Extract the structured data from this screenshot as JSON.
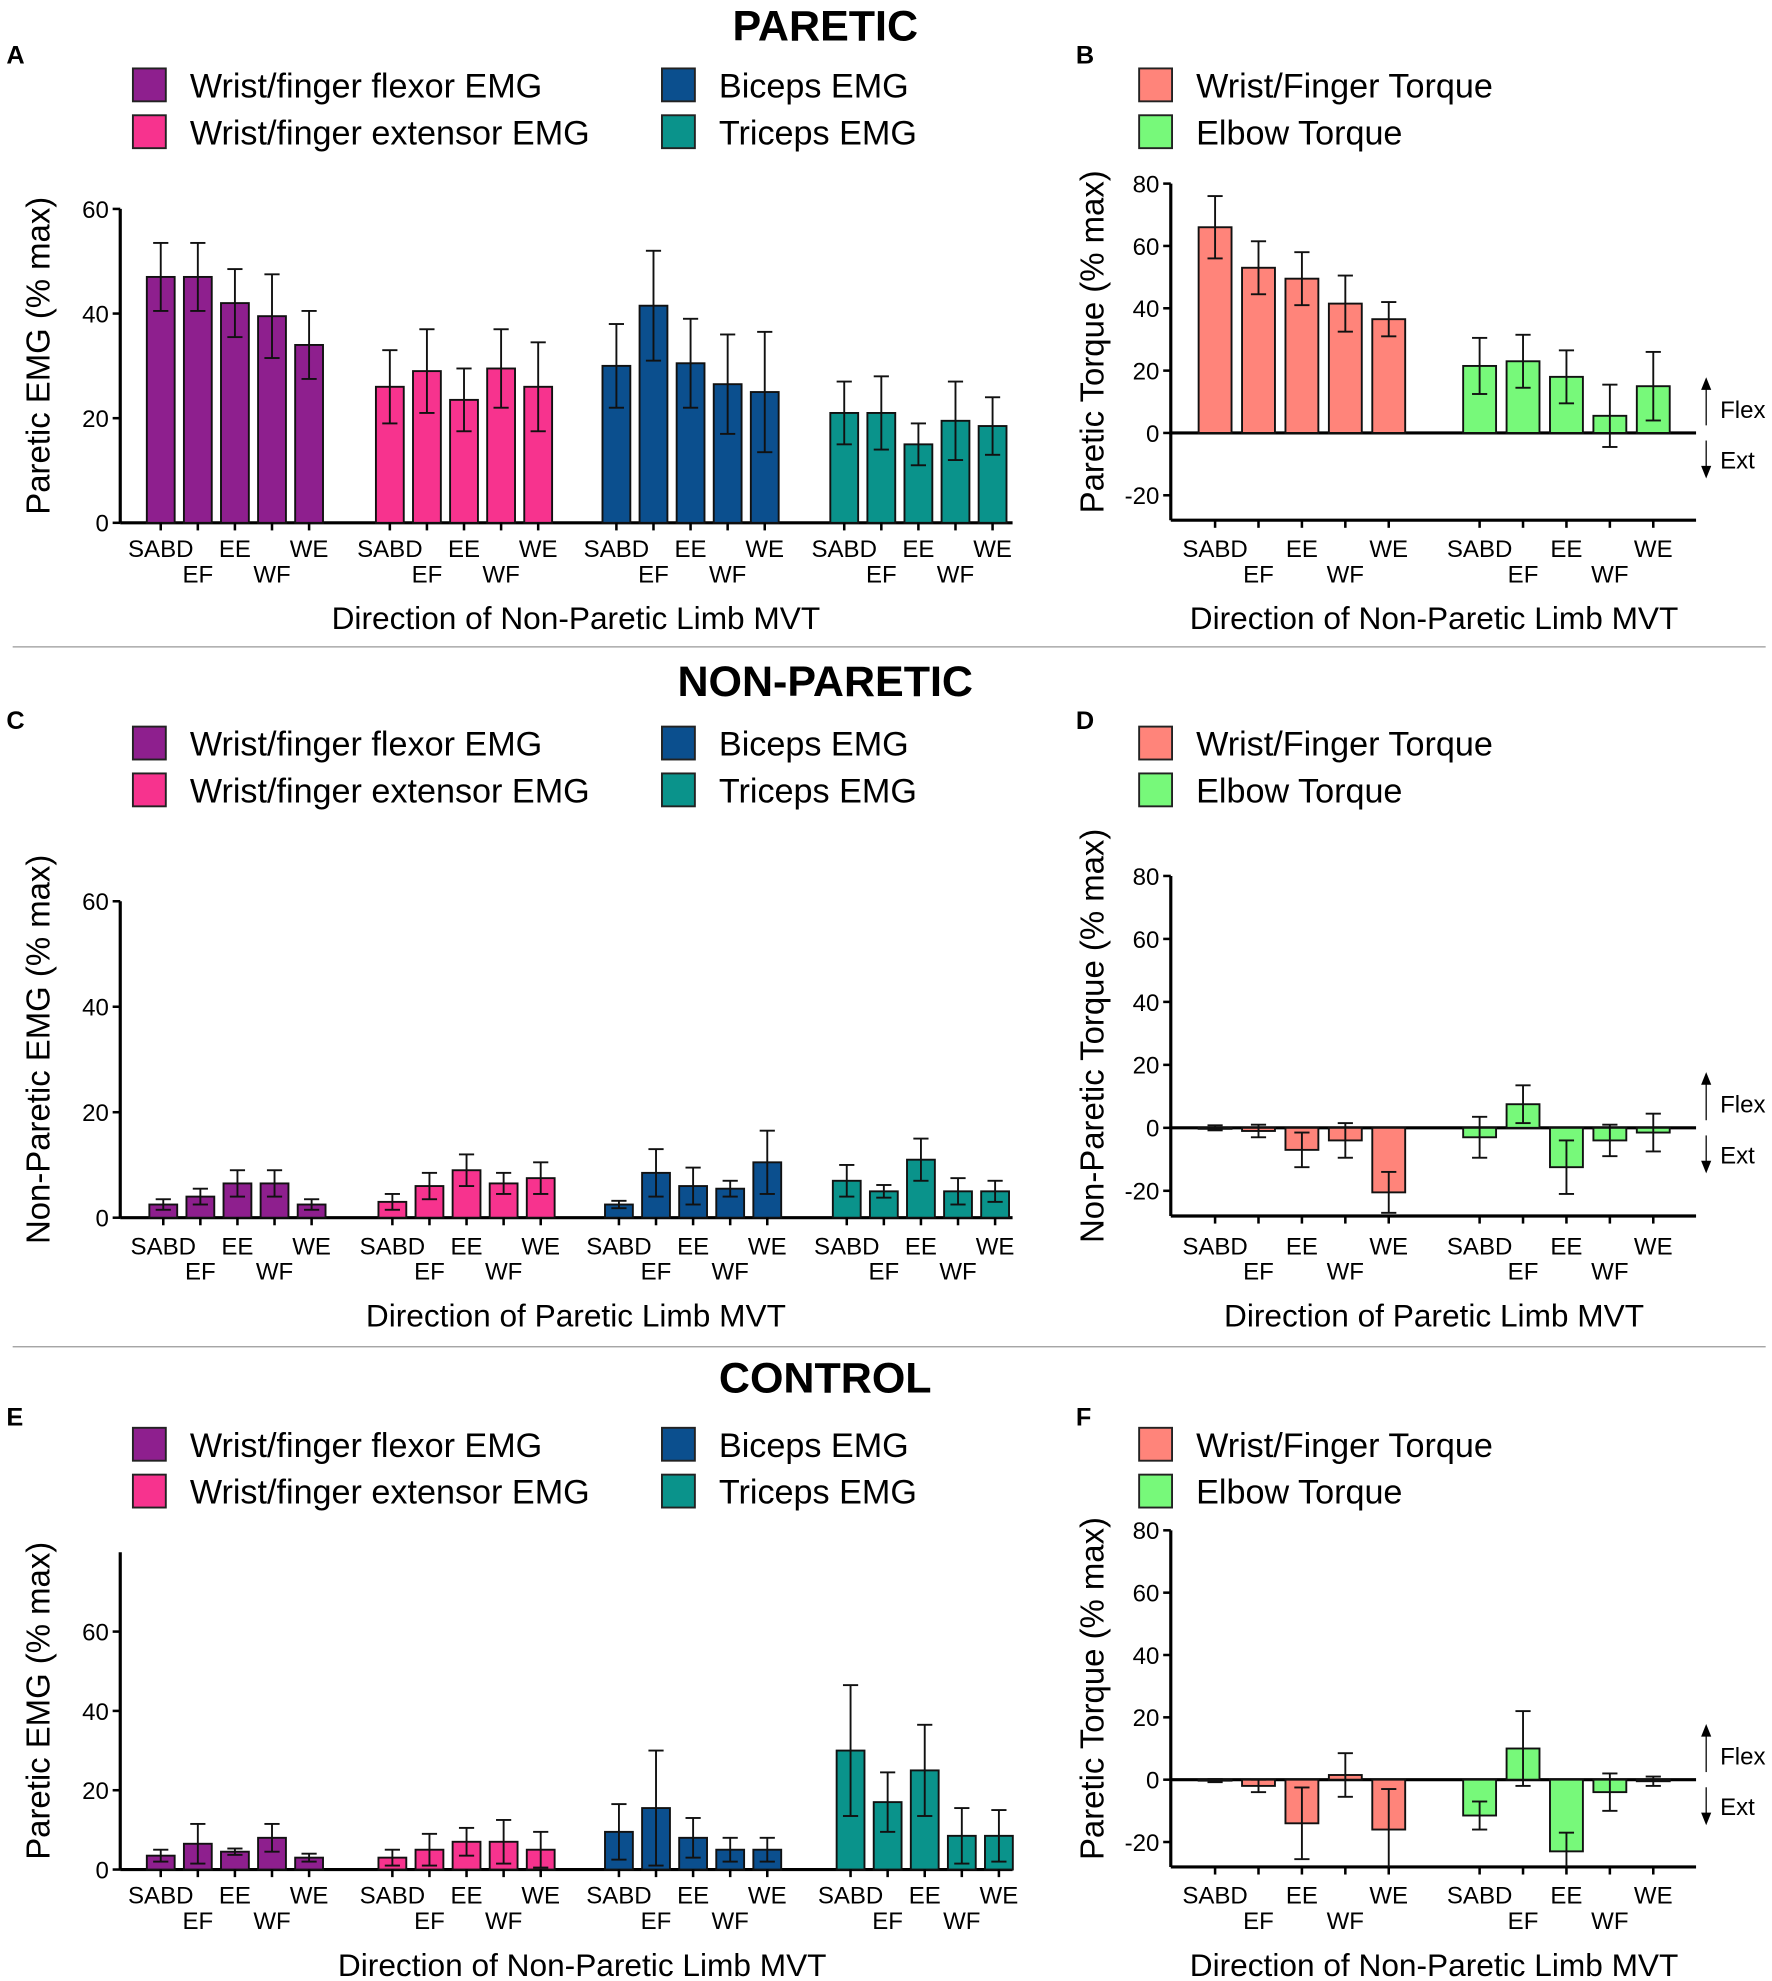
{
  "sections": [
    {
      "title": "PARETIC"
    },
    {
      "title": "NON-PARETIC"
    },
    {
      "title": "CONTROL"
    }
  ],
  "colors": {
    "flexor": "#8E1F8E",
    "extensor": "#F7338E",
    "biceps": "#0B4F8E",
    "triceps": "#0A938B",
    "wrist_torque": "#FF847A",
    "elbow_torque": "#77F97A"
  },
  "chart_data": [
    {
      "panel": "A",
      "type": "bar",
      "ylabel": "Paretic EMG (% max)",
      "xlabel": "Direction of Non-Paretic Limb MVT",
      "ylim": [
        0,
        60
      ],
      "yticks": [
        0,
        20,
        40,
        60
      ],
      "categories": [
        "SABD",
        "EF",
        "EE",
        "WF",
        "WE"
      ],
      "series": [
        {
          "name": "Wrist/finger flexor EMG",
          "color_key": "flexor",
          "values": [
            47,
            47,
            42,
            39.5,
            34
          ],
          "errors": [
            6.5,
            6.5,
            6.5,
            8,
            6.5
          ]
        },
        {
          "name": "Wrist/finger extensor EMG",
          "color_key": "extensor",
          "values": [
            26,
            29,
            23.5,
            29.5,
            26
          ],
          "errors": [
            7,
            8,
            6,
            7.5,
            8.5
          ]
        },
        {
          "name": "Biceps EMG",
          "color_key": "biceps",
          "values": [
            30,
            41.5,
            30.5,
            26.5,
            25
          ],
          "errors": [
            8,
            10.5,
            8.5,
            9.5,
            11.5
          ]
        },
        {
          "name": "Triceps EMG",
          "color_key": "triceps",
          "values": [
            21,
            21,
            15,
            19.5,
            18.5
          ],
          "errors": [
            6,
            7,
            4,
            7.5,
            5.5
          ]
        }
      ]
    },
    {
      "panel": "B",
      "type": "bar",
      "ylabel": "Paretic Torque (% max)",
      "xlabel": "Direction of Non-Paretic Limb MVT",
      "ylim": [
        -28,
        80
      ],
      "yticks": [
        -20,
        0,
        20,
        40,
        60,
        80
      ],
      "categories": [
        "SABD",
        "EF",
        "EE",
        "WF",
        "WE"
      ],
      "annotations": [
        "Flex",
        "Ext"
      ],
      "series": [
        {
          "name": "Wrist/Finger Torque",
          "color_key": "wrist_torque",
          "values": [
            66,
            53,
            49.5,
            41.5,
            36.5
          ],
          "errors": [
            10,
            8.5,
            8.5,
            9,
            5.5
          ]
        },
        {
          "name": "Elbow Torque",
          "color_key": "elbow_torque",
          "values": [
            21.5,
            23,
            18,
            5.5,
            15
          ],
          "errors": [
            9,
            8.5,
            8.5,
            10,
            11
          ]
        }
      ]
    },
    {
      "panel": "C",
      "type": "bar",
      "ylabel": "Non-Paretic EMG (% max)",
      "xlabel": "Direction of Paretic Limb MVT",
      "ylim": [
        0,
        60
      ],
      "yticks": [
        0,
        20,
        40,
        60
      ],
      "categories": [
        "SABD",
        "EF",
        "EE",
        "WF",
        "WE"
      ],
      "series": [
        {
          "name": "Wrist/finger flexor EMG",
          "color_key": "flexor",
          "values": [
            2.5,
            4,
            6.5,
            6.5,
            2.5
          ],
          "errors": [
            1,
            1.5,
            2.5,
            2.5,
            1
          ]
        },
        {
          "name": "Wrist/finger extensor EMG",
          "color_key": "extensor",
          "values": [
            3,
            6,
            9,
            6.5,
            7.5
          ],
          "errors": [
            1.5,
            2.5,
            3,
            2,
            3
          ]
        },
        {
          "name": "Biceps EMG",
          "color_key": "biceps",
          "values": [
            2.5,
            8.5,
            6,
            5.5,
            10.5
          ],
          "errors": [
            0.7,
            4.5,
            3.5,
            1.5,
            6
          ]
        },
        {
          "name": "Triceps EMG",
          "color_key": "triceps",
          "values": [
            7,
            5,
            11,
            5,
            5
          ],
          "errors": [
            3,
            1.2,
            4,
            2.5,
            2
          ]
        }
      ]
    },
    {
      "panel": "D",
      "type": "bar",
      "ylabel": "Non-Paretic Torque (% max)",
      "xlabel": "Direction of Paretic Limb MVT",
      "ylim": [
        -28,
        80
      ],
      "yticks": [
        -20,
        0,
        20,
        40,
        60,
        80
      ],
      "categories": [
        "SABD",
        "EF",
        "EE",
        "WF",
        "WE"
      ],
      "annotations": [
        "Flex",
        "Ext"
      ],
      "series": [
        {
          "name": "Wrist/Finger Torque",
          "color_key": "wrist_torque",
          "values": [
            0,
            -1,
            -7,
            -4,
            -20.5
          ],
          "errors": [
            0.8,
            2,
            5.5,
            5.5,
            6.5
          ]
        },
        {
          "name": "Elbow Torque",
          "color_key": "elbow_torque",
          "values": [
            -3,
            7.5,
            -12.5,
            -4,
            -1.5
          ],
          "errors": [
            6.5,
            6,
            8.5,
            5,
            6
          ]
        }
      ]
    },
    {
      "panel": "E",
      "type": "bar",
      "ylabel": "Paretic EMG (% max)",
      "xlabel": "Direction of Non-Paretic Limb MVT",
      "ylim": [
        0,
        80
      ],
      "yticks": [
        0,
        20,
        40,
        60
      ],
      "categories": [
        "SABD",
        "EF",
        "EE",
        "WF",
        "WE"
      ],
      "series": [
        {
          "name": "Wrist/finger flexor EMG",
          "color_key": "flexor",
          "values": [
            3.5,
            6.5,
            4.5,
            8,
            3
          ],
          "errors": [
            1.5,
            5,
            0.8,
            3.5,
            1
          ]
        },
        {
          "name": "Wrist/finger extensor EMG",
          "color_key": "extensor",
          "values": [
            3,
            5,
            7,
            7,
            5
          ],
          "errors": [
            2,
            4,
            3.5,
            5.5,
            4.5
          ]
        },
        {
          "name": "Biceps EMG",
          "color_key": "biceps",
          "values": [
            9.5,
            15.5,
            8,
            5,
            5
          ],
          "errors": [
            7,
            14.5,
            5,
            3,
            3
          ]
        },
        {
          "name": "Triceps EMG",
          "color_key": "triceps",
          "values": [
            30,
            17,
            25,
            8.5,
            8.5
          ],
          "errors": [
            16.5,
            7.5,
            11.5,
            7,
            6.5
          ]
        }
      ]
    },
    {
      "panel": "F",
      "type": "bar",
      "ylabel": "Paretic Torque (% max)",
      "xlabel": "Direction of Non-Paretic Limb MVT",
      "ylim": [
        -28,
        80
      ],
      "yticks": [
        -20,
        0,
        20,
        40,
        60,
        80
      ],
      "categories": [
        "SABD",
        "EF",
        "EE",
        "WF",
        "WE"
      ],
      "annotations": [
        "Flex",
        "Ext"
      ],
      "series": [
        {
          "name": "Wrist/Finger Torque",
          "color_key": "wrist_torque",
          "values": [
            -0.3,
            -2,
            -14,
            1.5,
            -16
          ],
          "errors": [
            0.5,
            2,
            11.5,
            7,
            13
          ]
        },
        {
          "name": "Elbow Torque",
          "color_key": "elbow_torque",
          "values": [
            -11.5,
            10,
            -23,
            -4,
            -0.5
          ],
          "errors": [
            4.5,
            12,
            6,
            6,
            1.5
          ]
        }
      ]
    }
  ]
}
